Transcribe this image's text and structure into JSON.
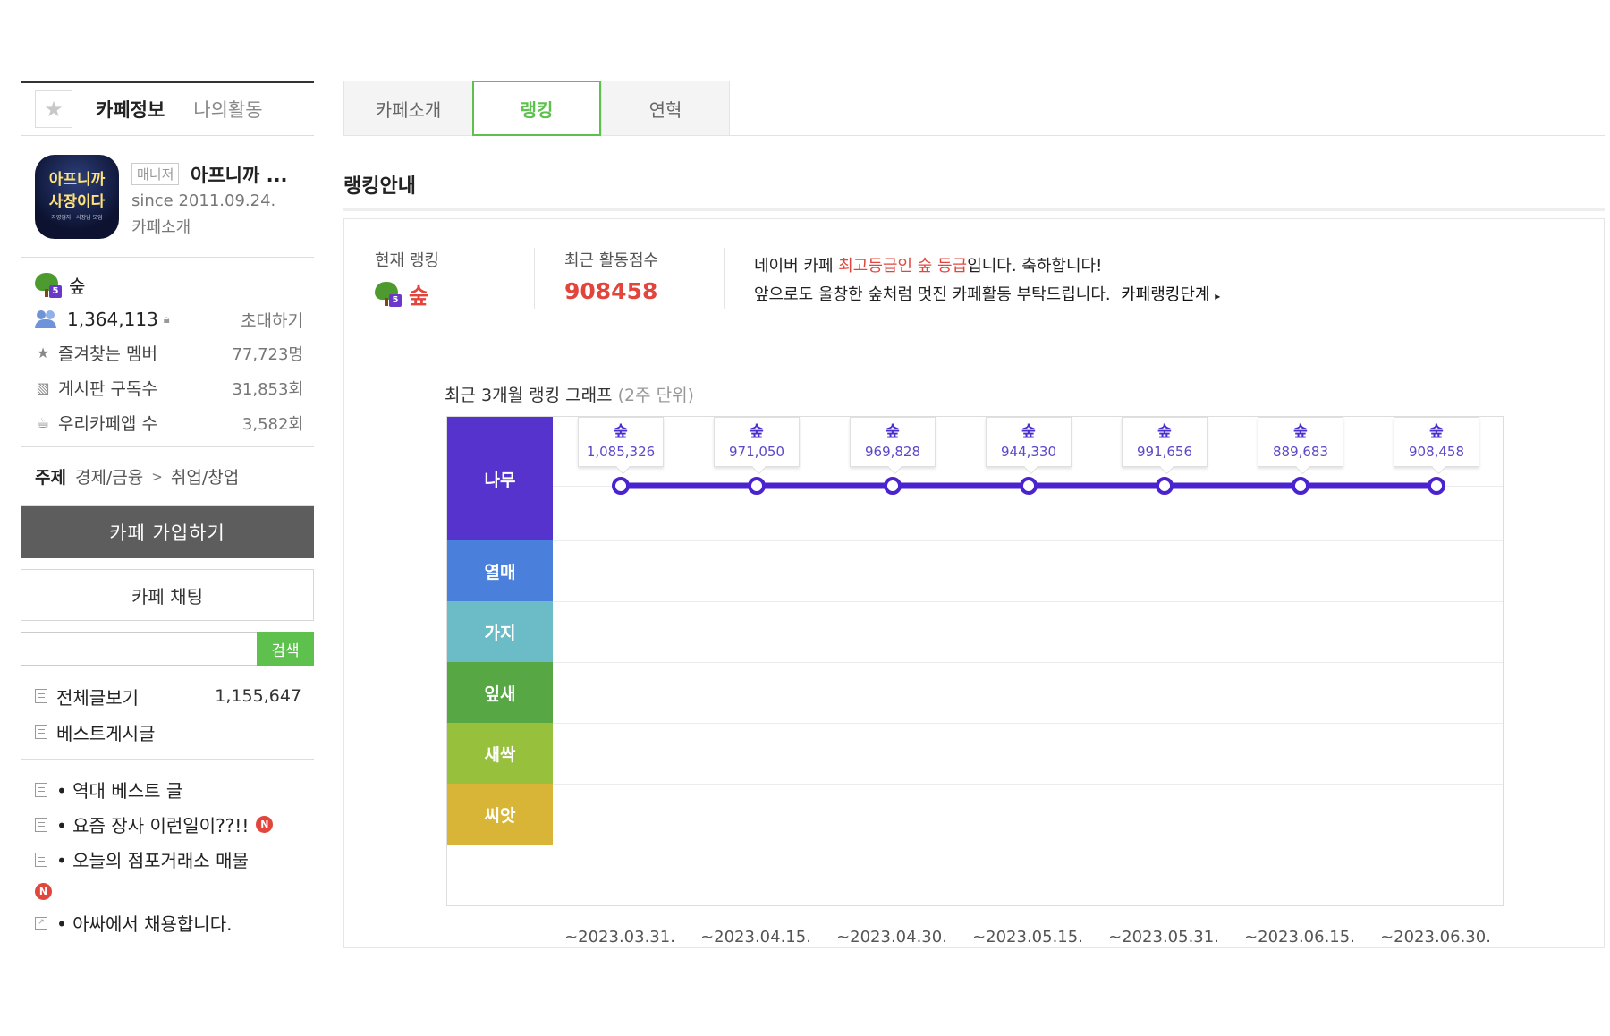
{
  "sidebar": {
    "tabs": {
      "cafe_info": "카페정보",
      "my_activity": "나의활동"
    },
    "cafe": {
      "logo_text_line1": "아프니까",
      "logo_text_line2": "사장이다",
      "logo_sub": "자영업자 · 사장님 모임",
      "manager_badge": "매니저",
      "name": "아프니까 ...",
      "since": "since 2011.09.24.",
      "intro": "카페소개"
    },
    "grade": "숲",
    "grade_level": "5",
    "members": "1,364,113",
    "invite": "초대하기",
    "stats": [
      {
        "icon": "star-icon",
        "label": "즐겨찾는 멤버",
        "value": "77,723명"
      },
      {
        "icon": "rss-icon",
        "label": "게시판 구독수",
        "value": "31,853회"
      },
      {
        "icon": "cafe-app-icon",
        "label": "우리카페앱 수",
        "value": "3,582회"
      }
    ],
    "topic": {
      "label": "주제",
      "cat1": "경제/금융",
      "arrow": ">",
      "cat2": "취업/창업"
    },
    "join_button": "카페 가입하기",
    "chat_button": "카페 채팅",
    "search": {
      "value": "",
      "button": "검색"
    },
    "menu": [
      {
        "label": "전체글보기",
        "count": "1,155,647"
      },
      {
        "label": "베스트게시글"
      }
    ],
    "menu2": [
      {
        "label": "• 역대 베스트 글",
        "new": false
      },
      {
        "label": "• 요즘 장사 이런일이??!!",
        "new": true
      },
      {
        "label": "• 오늘의 점포거래소 매물",
        "new": true
      },
      {
        "label": "• 아싸에서 채용합니다.",
        "new": false
      }
    ],
    "new_badge": "N"
  },
  "main": {
    "tabs": [
      {
        "label": "카페소개",
        "active": false
      },
      {
        "label": "랭킹",
        "active": true
      },
      {
        "label": "연혁",
        "active": false
      }
    ],
    "section_title": "랭킹안내",
    "ranking": {
      "current_label": "현재 랭킹",
      "current_grade": "숲",
      "score_label": "최근 활동점수",
      "score": "908458",
      "msg_prefix": "네이버 카페 ",
      "msg_highlight": "최고등급인 숲 등급",
      "msg_suffix": "입니다. 축하합니다!",
      "msg2": "앞으로도 울창한 숲처럼 멋진 카페활동 부탁드립니다.",
      "msg2_link": "카페랭킹단계",
      "msg2_arrow": "▸"
    },
    "graph_title": "최근 3개월 랭킹 그래프",
    "graph_subtitle": "(2주 단위)"
  },
  "chart_data": {
    "type": "line",
    "bands": [
      {
        "name": "나무",
        "color": "#5533cc"
      },
      {
        "name": "열매",
        "color": "#4a7fdb"
      },
      {
        "name": "가지",
        "color": "#6bbcc6"
      },
      {
        "name": "잎새",
        "color": "#57a845"
      },
      {
        "name": "새싹",
        "color": "#97c03d"
      },
      {
        "name": "씨앗",
        "color": "#d8b536"
      }
    ],
    "x": [
      "~2023.03.31.",
      "~2023.04.15.",
      "~2023.04.30.",
      "~2023.05.15.",
      "~2023.05.31.",
      "~2023.06.15.",
      "~2023.06.30."
    ],
    "series": [
      {
        "grades": [
          "숲",
          "숲",
          "숲",
          "숲",
          "숲",
          "숲",
          "숲"
        ],
        "values": [
          1085326,
          971050,
          969828,
          944330,
          991656,
          889683,
          908458
        ],
        "labels": [
          "1,085,326",
          "971,050",
          "969,828",
          "944,330",
          "991,656",
          "889,683",
          "908,458"
        ],
        "color": "#4a22cf"
      }
    ]
  }
}
